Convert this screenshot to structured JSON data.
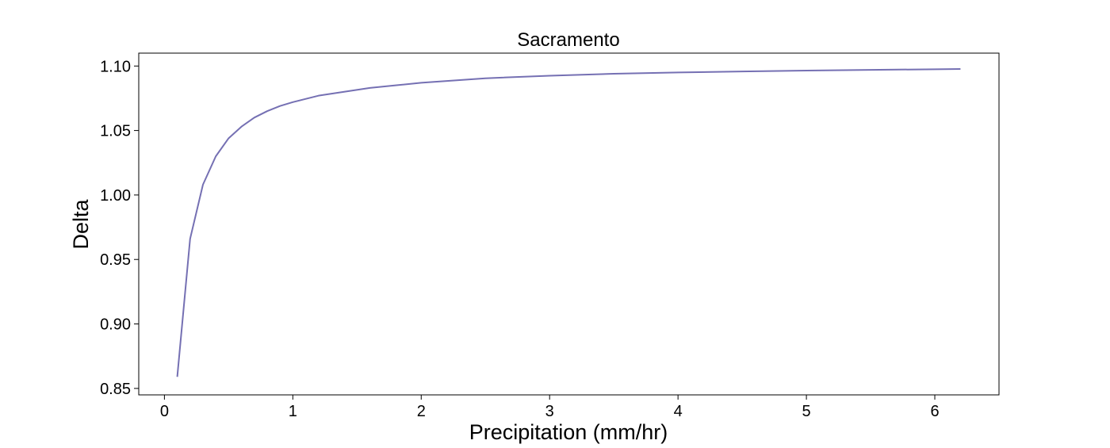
{
  "chart_data": {
    "type": "line",
    "title": "Sacramento",
    "xlabel": "Precipitation (mm/hr)",
    "ylabel": "Delta",
    "xlim": [
      -0.2,
      6.5
    ],
    "ylim": [
      0.845,
      1.11
    ],
    "xticks": [
      0,
      1,
      2,
      3,
      4,
      5,
      6
    ],
    "xtick_labels": [
      "0",
      "1",
      "2",
      "3",
      "4",
      "5",
      "6"
    ],
    "yticks": [
      0.85,
      0.9,
      0.95,
      1.0,
      1.05,
      1.1
    ],
    "ytick_labels": [
      "0.85",
      "0.90",
      "0.95",
      "1.00",
      "1.05",
      "1.10"
    ],
    "grid": false,
    "series": [
      {
        "color": "#7570b3",
        "x": [
          0.1,
          0.2,
          0.3,
          0.4,
          0.5,
          0.6,
          0.7,
          0.8,
          0.9,
          1.0,
          1.2,
          1.4,
          1.6,
          1.8,
          2.0,
          2.5,
          3.0,
          3.5,
          4.0,
          4.5,
          5.0,
          5.5,
          6.0,
          6.2
        ],
        "y": [
          0.859,
          0.966,
          1.008,
          1.03,
          1.044,
          1.053,
          1.06,
          1.065,
          1.069,
          1.072,
          1.077,
          1.08,
          1.083,
          1.085,
          1.087,
          1.0905,
          1.0925,
          1.094,
          1.095,
          1.0958,
          1.0965,
          1.097,
          1.0975,
          1.0977
        ]
      }
    ]
  }
}
